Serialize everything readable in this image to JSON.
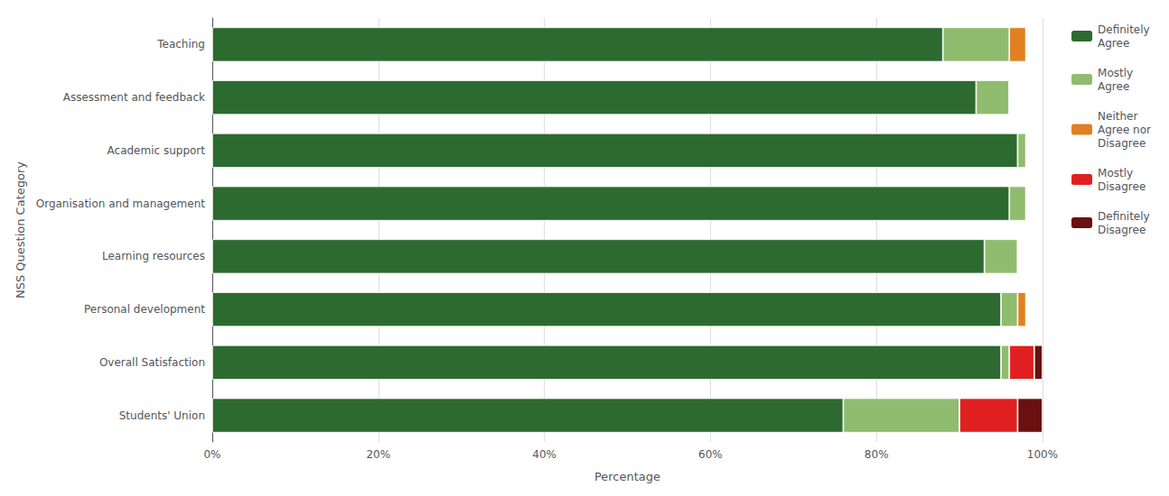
{
  "chart_data": {
    "type": "bar",
    "orientation": "horizontal",
    "stacked": true,
    "categories": [
      "Teaching",
      "Assessment and feedback",
      "Academic support",
      "Organisation and management",
      "Learning resources",
      "Personal development",
      "Overall Satisfaction",
      "Students' Union"
    ],
    "series": [
      {
        "name": "Definitely\nAgree",
        "color": "#2d6a30",
        "values": [
          88,
          92,
          97,
          96,
          93,
          95,
          95,
          76
        ]
      },
      {
        "name": "Mostly\nAgree",
        "color": "#8fbc6e",
        "values": [
          8,
          4,
          1,
          2,
          4,
          2,
          1,
          14
        ]
      },
      {
        "name": "Neither\nAgree nor\nDisagree",
        "color": "#e08020",
        "values": [
          2,
          0,
          0,
          0,
          0,
          1,
          0,
          0
        ]
      },
      {
        "name": "Mostly\nDisagree",
        "color": "#e02020",
        "values": [
          0,
          0,
          0,
          0,
          0,
          0,
          3,
          7
        ]
      },
      {
        "name": "Definitely\nDisagree",
        "color": "#6b1010",
        "values": [
          0,
          0,
          0,
          0,
          0,
          0,
          1,
          3
        ]
      }
    ],
    "xlabel": "Percentage",
    "ylabel": "NSS Question Category",
    "xlim": [
      0,
      100
    ],
    "xticks": [
      {
        "value": 0,
        "label": "0%"
      },
      {
        "value": 20,
        "label": "20%"
      },
      {
        "value": 40,
        "label": "40%"
      },
      {
        "value": 60,
        "label": "60%"
      },
      {
        "value": 80,
        "label": "80%"
      },
      {
        "value": 100,
        "label": "100%"
      }
    ],
    "grid": true,
    "legend": "right"
  }
}
